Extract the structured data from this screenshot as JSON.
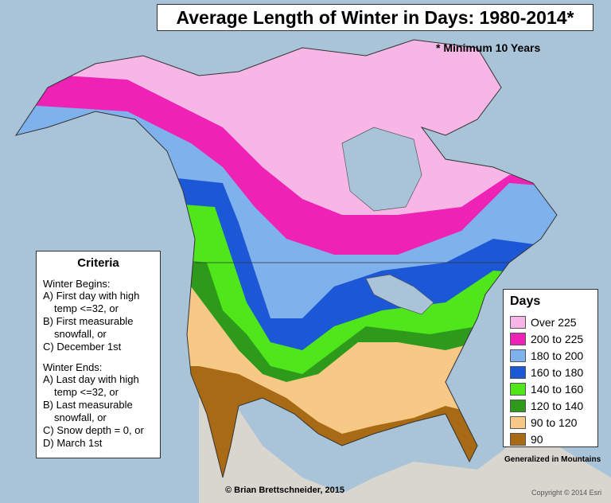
{
  "title": "Average Length of Winter in Days: 1980-2014*",
  "note": "* Minimum 10 Years",
  "criteria": {
    "title": "Criteria",
    "sections": [
      {
        "heading": "Winter Begins:",
        "items": [
          "A) First day with high temp <=32, or",
          "B) First measurable snowfall, or",
          "C) December 1st"
        ]
      },
      {
        "heading": "Winter Ends:",
        "items": [
          "A) Last day with high temp <=32, or",
          "B) Last measurable snowfall, or",
          "C) Snow depth = 0, or",
          "D) March 1st"
        ]
      }
    ]
  },
  "legend": {
    "title": "Days",
    "items": [
      {
        "label": "Over 225",
        "color": "#f7b6e6"
      },
      {
        "label": "200 to 225",
        "color": "#ee22b4"
      },
      {
        "label": "180 to 200",
        "color": "#7fb2ec"
      },
      {
        "label": "160 to 180",
        "color": "#1c57d6"
      },
      {
        "label": "140 to 160",
        "color": "#4fe61c"
      },
      {
        "label": "120 to 140",
        "color": "#2e9a1c"
      },
      {
        "label": "90 to 120",
        "color": "#f7c987"
      },
      {
        "label": "90",
        "color": "#a86a14"
      }
    ]
  },
  "footnote": "Generalized in Mountains",
  "credit": "© Brian Brettschneider, 2015",
  "copyright": "Copyright © 2014 Esri"
}
